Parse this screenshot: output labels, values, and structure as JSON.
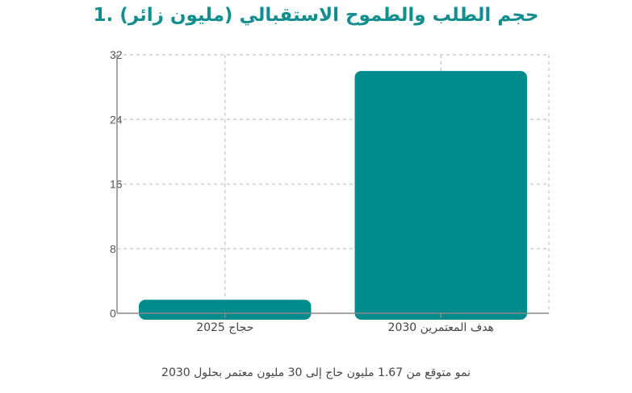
{
  "title": "1. حجم الطلب والطموح الاستقبالي (مليون زائر)",
  "caption": "نمو متوقع من 1.67 مليون حاج إلى 30 مليون معتمر بحلول 2030",
  "colors": {
    "bar": "#008c8c",
    "title": "#138e8e",
    "grid": "#cfcfcf"
  },
  "chart_data": {
    "type": "bar",
    "categories": [
      "حجاج 2025",
      "هدف المعتمرين 2030"
    ],
    "values": [
      1.67,
      30
    ],
    "title": "1. حجم الطلب والطموح الاستقبالي (مليون زائر)",
    "xlabel": "",
    "ylabel": "",
    "ylim": [
      0,
      32
    ],
    "yticks": [
      0,
      8,
      16,
      24,
      32
    ],
    "grid": true,
    "legend": "none"
  }
}
